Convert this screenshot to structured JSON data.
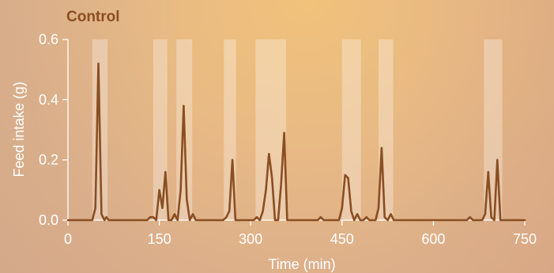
{
  "chart_data": {
    "type": "line",
    "title": "Control",
    "xlabel": "Time (min)",
    "ylabel": "Feed intake (g)",
    "xlim": [
      0,
      750
    ],
    "ylim": [
      0,
      0.6
    ],
    "x_ticks": [
      "0",
      "150",
      "300",
      "450",
      "600",
      "750"
    ],
    "y_ticks": [
      "0.0",
      "0.2",
      "0.4",
      "0.6"
    ],
    "grid": false,
    "line_color": "#8a4e22",
    "highlight_color": "#ffffff",
    "highlight_intervals": [
      [
        40,
        65
      ],
      [
        140,
        163
      ],
      [
        178,
        204
      ],
      [
        256,
        276
      ],
      [
        308,
        358
      ],
      [
        450,
        481
      ],
      [
        510,
        534
      ],
      [
        683,
        713
      ]
    ],
    "series": [
      {
        "x": [
          0,
          40,
          45,
          50,
          55,
          60,
          63,
          67,
          70,
          130,
          135,
          140,
          145,
          150,
          155,
          160,
          165,
          170,
          175,
          180,
          185,
          190,
          195,
          200,
          205,
          210,
          255,
          260,
          265,
          270,
          275,
          300,
          305,
          310,
          315,
          320,
          325,
          330,
          335,
          340,
          345,
          350,
          355,
          360,
          410,
          415,
          420,
          445,
          450,
          455,
          460,
          465,
          470,
          475,
          480,
          485,
          490,
          495,
          500,
          505,
          510,
          515,
          520,
          525,
          530,
          535,
          655,
          660,
          665,
          670,
          675,
          680,
          685,
          690,
          695,
          700,
          705,
          710,
          750
        ],
        "y": [
          0,
          0,
          0.04,
          0.52,
          0.02,
          0,
          0.01,
          0,
          0,
          0,
          0.01,
          0.01,
          0,
          0.1,
          0.04,
          0.16,
          0,
          0,
          0.02,
          0,
          0.1,
          0.38,
          0.07,
          0,
          0.02,
          0,
          0,
          0.01,
          0.03,
          0.2,
          0,
          0,
          0,
          0.01,
          0,
          0.03,
          0.1,
          0.22,
          0.14,
          0,
          0,
          0.12,
          0.29,
          0,
          0,
          0.01,
          0,
          0,
          0.04,
          0.15,
          0.14,
          0.03,
          0,
          0.02,
          0,
          0,
          0.01,
          0,
          0,
          0,
          0.04,
          0.24,
          0.01,
          0,
          0.02,
          0,
          0,
          0.01,
          0,
          0,
          0,
          0,
          0.02,
          0.16,
          0.01,
          0,
          0.2,
          0,
          0
        ]
      }
    ]
  }
}
